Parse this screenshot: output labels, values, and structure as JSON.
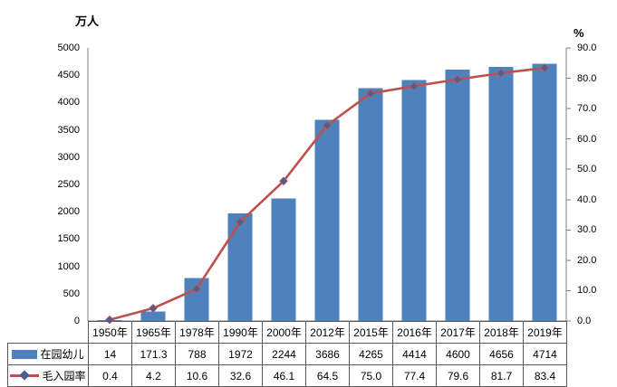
{
  "chart_data": {
    "type": "bar",
    "subtype": "bar+line combo",
    "title": "",
    "categories": [
      "1950年",
      "1965年",
      "1978年",
      "1990年",
      "2000年",
      "2012年",
      "2015年",
      "2016年",
      "2017年",
      "2018年",
      "2019年"
    ],
    "left_axis": {
      "title": "万人",
      "min": 0,
      "max": 5000,
      "tick_step": 500,
      "ticks": [
        "0",
        "500",
        "1000",
        "1500",
        "2000",
        "2500",
        "3000",
        "3500",
        "4000",
        "4500",
        "5000"
      ]
    },
    "right_axis": {
      "title": "%",
      "min": 0,
      "max": 90,
      "tick_step": 10,
      "ticks": [
        "0.0",
        "10.0",
        "20.0",
        "30.0",
        "40.0",
        "50.0",
        "60.0",
        "70.0",
        "80.0",
        "90.0"
      ]
    },
    "series": [
      {
        "name": "在园幼儿",
        "type": "bar",
        "axis": "left",
        "color": "#4F81BD",
        "values": [
          14,
          171.3,
          788,
          1972,
          2244,
          3686,
          4265,
          4414,
          4600,
          4656,
          4714
        ],
        "display": [
          "14",
          "171.3",
          "788",
          "1972",
          "2244",
          "3686",
          "4265",
          "4414",
          "4600",
          "4656",
          "4714"
        ]
      },
      {
        "name": "毛入园率",
        "type": "line",
        "axis": "right",
        "color": "#C0504D",
        "marker": "diamond",
        "marker_color": "#4C5F93",
        "values": [
          0.4,
          4.2,
          10.6,
          32.6,
          46.1,
          64.5,
          75.0,
          77.4,
          79.6,
          81.7,
          83.4
        ],
        "display": [
          "0.4",
          "4.2",
          "10.6",
          "32.6",
          "46.1",
          "64.5",
          "75.0",
          "77.4",
          "79.6",
          "81.7",
          "83.4"
        ]
      }
    ],
    "grid": false,
    "legend_position": "table-left-column"
  },
  "colors": {
    "background": "#ffffff",
    "axis_line": "#808080",
    "table_border": "#595959",
    "text": "#000000"
  }
}
